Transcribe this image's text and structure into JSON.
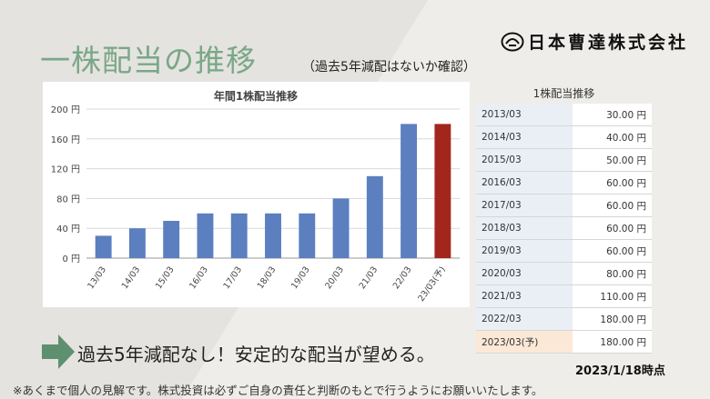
{
  "page": {
    "title": "一株配当の推移",
    "subtitle": "（過去5年減配はないか確認）",
    "company_logo_text": "日本曹達株式会社",
    "conclusion": "過去5年減配なし！安定的な配当が望める。",
    "as_of": "2023/1/18時点",
    "footnote": "※あくまで個人の見解です。株式投資は必ずご自身の責任と判断のもとで行うようにお願いいたします。"
  },
  "chart_data": {
    "type": "bar",
    "title": "年間1株配当推移",
    "categories": [
      "13/03",
      "14/03",
      "15/03",
      "16/03",
      "17/03",
      "18/03",
      "19/03",
      "20/03",
      "21/03",
      "22/03",
      "23/03(予)"
    ],
    "values": [
      30,
      40,
      50,
      60,
      60,
      60,
      60,
      80,
      110,
      180,
      180
    ],
    "ylim": [
      0,
      200
    ],
    "yticks": [
      0,
      40,
      80,
      120,
      160,
      200
    ],
    "ytick_labels": [
      "0 円",
      "40 円",
      "80 円",
      "120 円",
      "160 円",
      "200 円"
    ],
    "xlabel": "",
    "ylabel": "",
    "grid": true,
    "colors": {
      "bar": "#5b7fbf",
      "forecast": "#a3261d",
      "grid": "#d9d9d9"
    }
  },
  "table": {
    "title": "1株配当推移",
    "rows": [
      {
        "year": "2013/03",
        "value": "30.00 円"
      },
      {
        "year": "2014/03",
        "value": "40.00 円"
      },
      {
        "year": "2015/03",
        "value": "50.00 円"
      },
      {
        "year": "2016/03",
        "value": "60.00 円"
      },
      {
        "year": "2017/03",
        "value": "60.00 円"
      },
      {
        "year": "2018/03",
        "value": "60.00 円"
      },
      {
        "year": "2019/03",
        "value": "60.00 円"
      },
      {
        "year": "2020/03",
        "value": "80.00 円"
      },
      {
        "year": "2021/03",
        "value": "110.00 円"
      },
      {
        "year": "2022/03",
        "value": "180.00 円"
      },
      {
        "year": "2023/03(予)",
        "value": "180.00 円"
      }
    ]
  },
  "colors": {
    "title": "#7aa787",
    "arrow": "#5e9070",
    "accent_bg": "#e2e0da"
  }
}
